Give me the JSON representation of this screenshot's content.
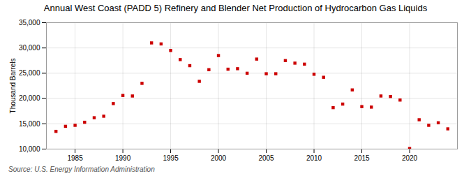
{
  "chart_data": {
    "type": "scatter",
    "title": "Annual West Coast (PADD 5) Refinery and Blender Net Production of Hydrocarbon Gas Liquids",
    "y_label": "Thousand Barrels",
    "source": "Source: U.S. Energy Information Administration",
    "x": [
      1983,
      1984,
      1985,
      1986,
      1987,
      1988,
      1989,
      1990,
      1991,
      1992,
      1993,
      1994,
      1995,
      1996,
      1997,
      1998,
      1999,
      2000,
      2001,
      2002,
      2003,
      2004,
      2005,
      2006,
      2007,
      2008,
      2009,
      2010,
      2011,
      2012,
      2013,
      2014,
      2015,
      2016,
      2017,
      2018,
      2019,
      2020,
      2021,
      2022,
      2023,
      2024
    ],
    "values": [
      13500,
      14500,
      14700,
      15300,
      16200,
      16500,
      19000,
      20600,
      20500,
      23000,
      31000,
      30800,
      29500,
      27700,
      26500,
      23400,
      25700,
      28500,
      25800,
      25900,
      25000,
      27800,
      24900,
      24900,
      27500,
      27000,
      26800,
      24800,
      24200,
      18200,
      18900,
      21700,
      18400,
      18300,
      20500,
      20400,
      19700,
      10100,
      15800,
      14700,
      15200,
      14000
    ],
    "color": "#cc0000",
    "marker": "square",
    "xlim": [
      1982,
      2025
    ],
    "xticks": [
      1985,
      1990,
      1995,
      2000,
      2005,
      2010,
      2015,
      2020
    ],
    "ylim": [
      10000,
      35000
    ],
    "yticks": [
      {
        "value": 10000,
        "label": "10,000"
      },
      {
        "value": 15000,
        "label": "15,000"
      },
      {
        "value": 20000,
        "label": "20,000"
      },
      {
        "value": 25000,
        "label": "25,000"
      },
      {
        "value": 30000,
        "label": "30,000"
      },
      {
        "value": 35000,
        "label": "35,000"
      }
    ],
    "grid": true
  }
}
